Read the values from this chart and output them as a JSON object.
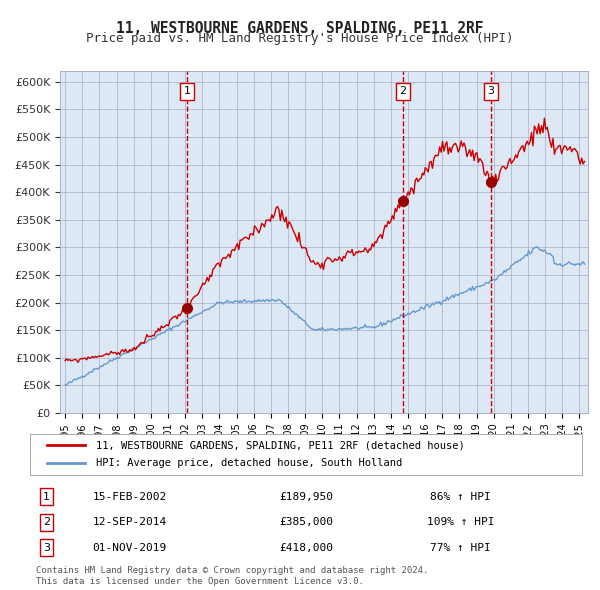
{
  "title": "11, WESTBOURNE GARDENS, SPALDING, PE11 2RF",
  "subtitle": "Price paid vs. HM Land Registry's House Price Index (HPI)",
  "background_color": "#dce9f5",
  "plot_bg_color": "#dce9f5",
  "fig_bg_color": "#ffffff",
  "red_line_color": "#cc0000",
  "blue_line_color": "#6699cc",
  "sale_marker_color": "#990000",
  "vline_color": "#cc0000",
  "ylabel_color": "#333333",
  "grid_color": "#aaaacc",
  "legend_label_red": "11, WESTBOURNE GARDENS, SPALDING, PE11 2RF (detached house)",
  "legend_label_blue": "HPI: Average price, detached house, South Holland",
  "sales": [
    {
      "num": 1,
      "date_num": 2002.12,
      "price": 189950,
      "label": "15-FEB-2002",
      "price_str": "£189,950",
      "pct": "86% ↑ HPI"
    },
    {
      "num": 2,
      "date_num": 2014.71,
      "price": 385000,
      "label": "12-SEP-2014",
      "price_str": "£385,000",
      "pct": "109% ↑ HPI"
    },
    {
      "num": 3,
      "date_num": 2019.83,
      "price": 418000,
      "label": "01-NOV-2019",
      "price_str": "£418,000",
      "pct": "77% ↑ HPI"
    }
  ],
  "footer_line1": "Contains HM Land Registry data © Crown copyright and database right 2024.",
  "footer_line2": "This data is licensed under the Open Government Licence v3.0.",
  "ylim": [
    0,
    620000
  ],
  "xlim_start": 1994.7,
  "xlim_end": 2025.5
}
